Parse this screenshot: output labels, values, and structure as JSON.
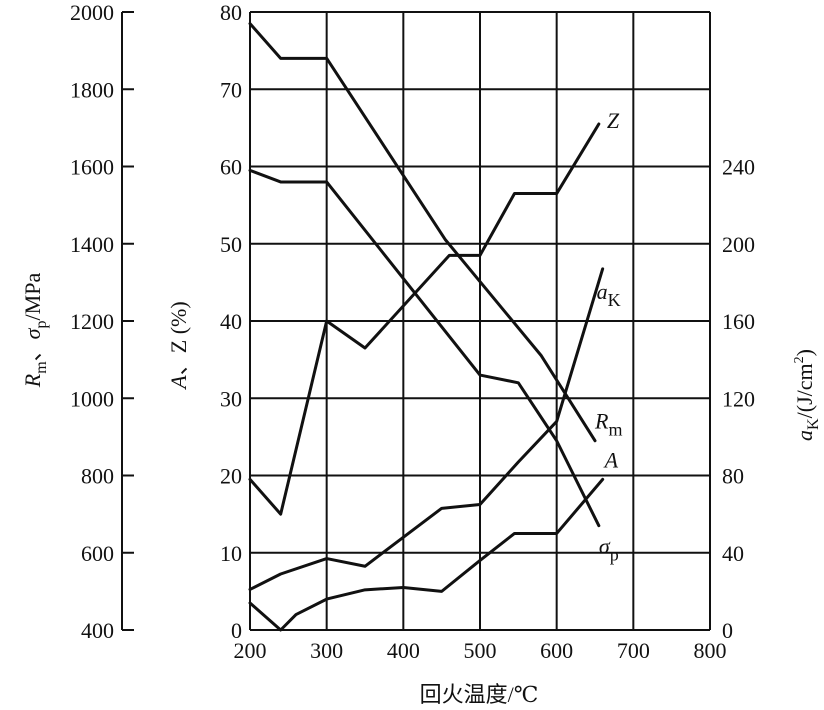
{
  "chart_data": {
    "type": "line",
    "xlabel": "回火温度/℃",
    "x_ticks": [
      "200",
      "300",
      "400",
      "500",
      "600",
      "700",
      "800"
    ],
    "xlim": [
      200,
      800
    ],
    "axes": {
      "left_outer": {
        "label_parts": {
          "R": "R",
          "m": "m",
          "sep": "、",
          "sigma": "σ",
          "p": "p",
          "unit": "/MPa"
        },
        "ticks": [
          "400",
          "600",
          "800",
          "1000",
          "1200",
          "1400",
          "1600",
          "1800",
          "2000"
        ],
        "range": [
          400,
          2000
        ]
      },
      "left_inner": {
        "label_parts": {
          "A": "A",
          "rest": "、Z (%)"
        },
        "ticks": [
          "0",
          "10",
          "20",
          "30",
          "40",
          "50",
          "60",
          "70",
          "80"
        ],
        "range": [
          0,
          80
        ]
      },
      "right": {
        "label_parts": {
          "a": "a",
          "K": "K",
          "unit": "/(J/cm",
          "sup": "2",
          "close": ")"
        },
        "ticks": [
          "0",
          "40",
          "80",
          "120",
          "160",
          "200",
          "240"
        ],
        "range": [
          0,
          320
        ]
      }
    },
    "series": [
      {
        "name": "Z",
        "axis": "left_inner",
        "points": [
          [
            200,
            19.5
          ],
          [
            240,
            15
          ],
          [
            300,
            40
          ],
          [
            350,
            36.5
          ],
          [
            460,
            48.5
          ],
          [
            500,
            48.5
          ],
          [
            545,
            56.5
          ],
          [
            600,
            56.5
          ],
          [
            655,
            65.5
          ]
        ],
        "label_parts": {
          "main": "Z",
          "sub": ""
        }
      },
      {
        "name": "aK",
        "axis": "right",
        "points": [
          [
            200,
            21
          ],
          [
            240,
            29
          ],
          [
            300,
            37
          ],
          [
            350,
            33
          ],
          [
            450,
            63
          ],
          [
            500,
            65
          ],
          [
            550,
            87
          ],
          [
            600,
            108
          ],
          [
            660,
            187
          ]
        ],
        "label_parts": {
          "main": "a",
          "sub": "K"
        }
      },
      {
        "name": "Rm",
        "axis": "left_outer",
        "points": [
          [
            200,
            1970
          ],
          [
            240,
            1880
          ],
          [
            300,
            1880
          ],
          [
            455,
            1410
          ],
          [
            580,
            1110
          ],
          [
            650,
            890
          ]
        ],
        "label_parts": {
          "main": "R",
          "sub": "m"
        }
      },
      {
        "name": "A",
        "axis": "left_inner",
        "points": [
          [
            200,
            3.5
          ],
          [
            240,
            0
          ],
          [
            260,
            2
          ],
          [
            300,
            4
          ],
          [
            350,
            5.2
          ],
          [
            400,
            5.5
          ],
          [
            450,
            5
          ],
          [
            500,
            9
          ],
          [
            545,
            12.5
          ],
          [
            600,
            12.5
          ],
          [
            660,
            19.5
          ]
        ],
        "label_parts": {
          "main": "A",
          "sub": ""
        }
      },
      {
        "name": "σp",
        "axis": "left_outer",
        "points": [
          [
            200,
            1590
          ],
          [
            240,
            1560
          ],
          [
            300,
            1560
          ],
          [
            500,
            1060
          ],
          [
            550,
            1040
          ],
          [
            600,
            890
          ],
          [
            655,
            670
          ]
        ],
        "label_parts": {
          "main": "σ",
          "sub": "p"
        }
      }
    ]
  }
}
